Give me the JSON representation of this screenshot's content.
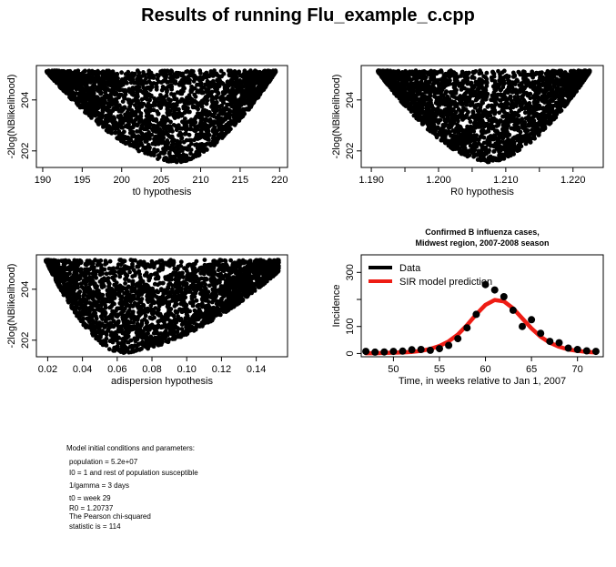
{
  "page": {
    "title": "Results of running Flu_example_c.cpp"
  },
  "chart_data": [
    {
      "id": "t0",
      "type": "scatter",
      "xlabel": "t0 hypothesis",
      "ylabel": "-2log(NBlikelihood)",
      "x_ticks": [
        "190",
        "195",
        "200",
        "205",
        "210",
        "215",
        "220"
      ],
      "x_tick_values": [
        190,
        195,
        200,
        205,
        210,
        215,
        220
      ],
      "y_ticks": [
        "202",
        "204"
      ],
      "y_tick_values": [
        202,
        204
      ],
      "xlim": [
        189.2,
        221
      ],
      "ylim": [
        201.35,
        205.35
      ],
      "shape": {
        "min_x": 207.0,
        "min_y": 201.55,
        "left_x": 190.5,
        "right_x": 219.5,
        "top_y": 205.15,
        "left_top_y": 205.1,
        "right_top_y": 205.1
      }
    },
    {
      "id": "R0",
      "type": "scatter",
      "xlabel": "R0 hypothesis",
      "ylabel": "-2log(NBlikelihood)",
      "x_ticks": [
        "1.190",
        "1.200",
        "1.210",
        "1.220"
      ],
      "x_tick_values": [
        1.19,
        1.2,
        1.21,
        1.22
      ],
      "minor_x_ticks": [
        1.195,
        1.205,
        1.215
      ],
      "y_ticks": [
        "202",
        "204"
      ],
      "y_tick_values": [
        202,
        204
      ],
      "xlim": [
        1.1885,
        1.2245
      ],
      "ylim": [
        201.35,
        205.35
      ],
      "shape": {
        "min_x": 1.2075,
        "min_y": 201.55,
        "left_x": 1.191,
        "right_x": 1.2225,
        "top_y": 205.15,
        "left_top_y": 205.1,
        "right_top_y": 205.1
      }
    },
    {
      "id": "adispersion",
      "type": "scatter",
      "xlabel": "adispersion hypothesis",
      "ylabel": "-2log(NBlikelihood)",
      "x_ticks": [
        "0.02",
        "0.04",
        "0.06",
        "0.08",
        "0.10",
        "0.12",
        "0.14"
      ],
      "x_tick_values": [
        0.02,
        0.04,
        0.06,
        0.08,
        0.1,
        0.12,
        0.14
      ],
      "y_ticks": [
        "202",
        "204"
      ],
      "y_tick_values": [
        202,
        204
      ],
      "xlim": [
        0.0135,
        0.158
      ],
      "ylim": [
        201.35,
        205.35
      ],
      "shape": {
        "min_x": 0.062,
        "min_y": 201.5,
        "left_x": 0.019,
        "right_x": 0.153,
        "top_y": 205.15,
        "left_top_y": 205.1,
        "right_top_y": 204.7
      }
    },
    {
      "id": "incidence",
      "type": "line",
      "title": "Confirmed B influenza cases,",
      "subtitle": "Midwest region, 2007-2008 season",
      "xlabel": "Time, in weeks relative to Jan 1, 2007",
      "ylabel": "Incidence",
      "x_ticks": [
        "50",
        "55",
        "60",
        "65",
        "70"
      ],
      "x_tick_values": [
        50,
        55,
        60,
        65,
        70
      ],
      "y_ticks": [
        "0",
        "100",
        "300"
      ],
      "y_tick_values": [
        0,
        100,
        300
      ],
      "minor_y_ticks": [
        200
      ],
      "xlim": [
        46.5,
        72.8
      ],
      "ylim": [
        -12,
        365
      ],
      "legend_position": "top-left",
      "colors": {
        "data": "#000000",
        "model": "#ee1c14"
      },
      "series": [
        {
          "name": "Data",
          "kind": "points",
          "x": [
            47,
            48,
            49,
            50,
            51,
            52,
            53,
            54,
            55,
            56,
            57,
            58,
            59,
            60,
            61,
            62,
            63,
            64,
            65,
            66,
            67,
            68,
            69,
            70,
            71,
            72
          ],
          "values": [
            8,
            5,
            6,
            8,
            9,
            14,
            15,
            12,
            18,
            30,
            55,
            95,
            145,
            255,
            235,
            210,
            160,
            100,
            125,
            75,
            45,
            40,
            20,
            15,
            10,
            8
          ]
        },
        {
          "name": "SIR model prediction",
          "kind": "line",
          "x": [
            47,
            48,
            49,
            50,
            51,
            52,
            53,
            54,
            55,
            56,
            57,
            58,
            59,
            60,
            61,
            62,
            63,
            64,
            65,
            66,
            67,
            68,
            69,
            70,
            71,
            72
          ],
          "values": [
            1,
            1,
            2,
            3,
            4,
            6,
            10,
            17,
            28,
            45,
            70,
            105,
            145,
            180,
            198,
            193,
            167,
            130,
            93,
            62,
            40,
            25,
            15,
            10,
            6,
            4
          ]
        }
      ]
    }
  ],
  "params": {
    "lines": [
      "Model initial conditions and parameters:",
      "population = 5.2e+07",
      "I0 = 1 and rest of population susceptible",
      "1/gamma  = 3 days",
      "t0  = week 29",
      "R0 = 1.20737",
      "The Pearson chi-squared",
      "statistic is = 114"
    ]
  }
}
